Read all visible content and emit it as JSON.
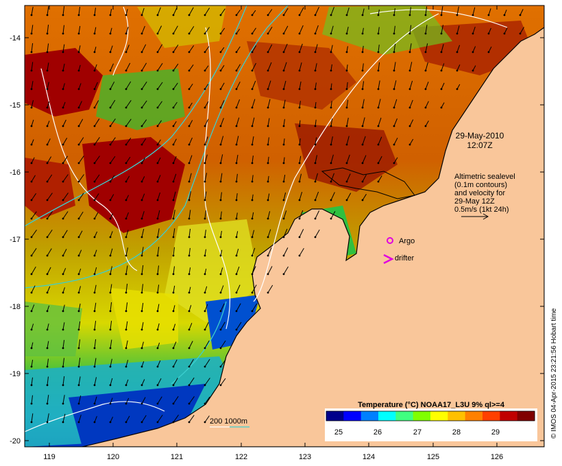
{
  "map": {
    "date": "29-May-2010",
    "time": "12:07Z",
    "credit": "© IMOS 04-Apr-2015 23:21:56 Hobart time",
    "colors": {
      "land": "#f9c69a",
      "coast": "#000000",
      "contour": "#ffffff",
      "bathymetry": "#3ccfcf",
      "argo": "#e000e0",
      "drifter": "#e000e0",
      "arrow": "#000000"
    }
  },
  "axes": {
    "x_ticks": [
      "119",
      "120",
      "121",
      "122",
      "123",
      "124",
      "125",
      "126"
    ],
    "y_ticks": [
      "-14",
      "-15",
      "-16",
      "-17",
      "-18",
      "-19",
      "-20"
    ]
  },
  "legend": {
    "altimetry_lines": [
      "Altimetric sealevel",
      "(0.1m contours)",
      "and velocity for",
      "29-May 12Z",
      "0.5m/s (1kt 24h)"
    ],
    "argo_label": "Argo",
    "drifter_label": "drifter",
    "bathymetry_label": "200  1000m"
  },
  "colorbar": {
    "title": "Temperature (°C) NOAA17_L3U 9% ql>=4",
    "ticks": [
      "25",
      "26",
      "27",
      "28",
      "29"
    ],
    "colors": [
      "#00008b",
      "#0000ff",
      "#0080ff",
      "#00ffff",
      "#40ff80",
      "#80ff00",
      "#ffff00",
      "#ffc000",
      "#ff8000",
      "#ff4000",
      "#c00000",
      "#800000"
    ]
  }
}
